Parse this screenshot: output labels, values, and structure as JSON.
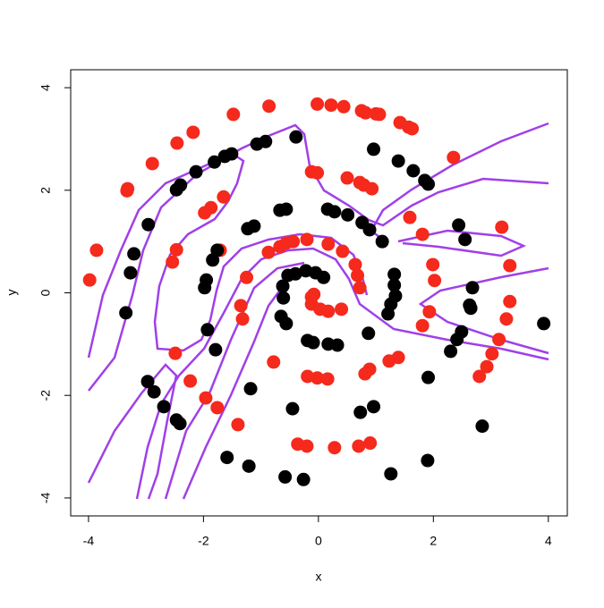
{
  "chart_data": {
    "type": "scatter",
    "xlabel": "x",
    "ylabel": "y",
    "xlim": [
      -4.31,
      4.33
    ],
    "ylim": [
      -4.35,
      4.35
    ],
    "xticks": [
      -4,
      -2,
      0,
      2,
      4
    ],
    "yticks": [
      -4,
      -2,
      0,
      2,
      4
    ],
    "series": [
      {
        "color": "#f5291c",
        "x": [
          -3.98,
          -3.86,
          -3.33,
          -3.32,
          -2.89,
          -2.46,
          -2.18,
          -1.48,
          -0.86,
          -0.02,
          0.22,
          0.44,
          0.75,
          0.82,
          1.0,
          1.06,
          1.42,
          1.57,
          1.63,
          2.35,
          -0.12,
          -0.02,
          0.5,
          0.72,
          0.79,
          0.93,
          -1.65,
          -1.87,
          -1.98,
          -2.47,
          -2.54,
          -1.71,
          -1.25,
          -1.35,
          -1.32,
          -0.87,
          -0.67,
          -0.56,
          -0.44,
          -0.2,
          0.17,
          0.42,
          0.64,
          0.68,
          0.72,
          -0.08,
          -0.12,
          -0.12,
          0.03,
          0.17,
          0.4,
          1.59,
          1.81,
          1.99,
          2.02,
          1.93,
          1.81,
          3.19,
          3.33,
          3.33,
          3.27,
          3.14,
          3.02,
          2.93,
          2.8,
          0.89,
          0.81,
          1.23,
          1.39,
          -0.78,
          -2.49,
          -2.23,
          -1.96,
          -1.76,
          -1.4,
          -0.19,
          -0.02,
          0.16,
          -0.36,
          -0.2,
          0.28,
          0.7,
          0.9
        ],
        "y": [
          0.25,
          0.83,
          1.99,
          2.03,
          2.52,
          2.92,
          3.13,
          3.48,
          3.64,
          3.68,
          3.66,
          3.63,
          3.55,
          3.51,
          3.49,
          3.48,
          3.32,
          3.23,
          3.2,
          2.64,
          2.36,
          2.34,
          2.24,
          2.15,
          2.1,
          2.03,
          1.87,
          1.66,
          1.56,
          0.84,
          0.6,
          0.83,
          0.3,
          -0.25,
          -0.51,
          0.79,
          0.9,
          0.97,
          1.0,
          1.04,
          0.95,
          0.81,
          0.55,
          0.34,
          0.1,
          -0.03,
          -0.08,
          -0.22,
          -0.32,
          -0.36,
          -0.32,
          1.47,
          1.14,
          0.55,
          0.24,
          -0.37,
          -0.64,
          1.28,
          0.53,
          -0.17,
          -0.51,
          -0.91,
          -1.19,
          -1.44,
          -1.63,
          -1.49,
          -1.58,
          -1.33,
          -1.26,
          -1.35,
          -1.18,
          -1.72,
          -2.05,
          -2.24,
          -2.57,
          -1.63,
          -1.66,
          -1.68,
          -2.95,
          -2.99,
          -3.02,
          -2.99,
          -2.93
        ]
      },
      {
        "color": "#000000",
        "x": [
          -3.21,
          -3.27,
          -3.35,
          -2.96,
          -2.47,
          -2.4,
          -2.13,
          -1.81,
          -1.63,
          -1.51,
          -1.07,
          -0.92,
          -0.39,
          0.96,
          1.39,
          1.65,
          1.85,
          1.91,
          2.44,
          2.55,
          -1.12,
          -1.23,
          -0.67,
          -0.56,
          0.16,
          0.28,
          0.51,
          0.76,
          0.89,
          1.11,
          -1.76,
          -1.84,
          -1.95,
          -1.98,
          -1.93,
          -1.79,
          -0.53,
          -0.62,
          -0.4,
          -0.22,
          -0.05,
          0.09,
          -0.61,
          -0.65,
          -0.56,
          -0.19,
          -0.09,
          0.17,
          0.33,
          0.87,
          1.32,
          1.32,
          1.34,
          1.26,
          1.21,
          2.68,
          2.63,
          2.65,
          2.49,
          2.41,
          2.3,
          3.92,
          -2.97,
          -2.86,
          -2.69,
          -2.47,
          -2.41,
          -1.18,
          -0.45,
          0.73,
          0.96,
          1.91,
          -1.59,
          -1.21,
          -0.58,
          -0.26,
          1.26,
          1.9,
          2.85
        ],
        "y": [
          0.76,
          0.39,
          -0.39,
          1.33,
          2.01,
          2.1,
          2.36,
          2.55,
          2.66,
          2.71,
          2.9,
          2.95,
          3.04,
          2.8,
          2.57,
          2.38,
          2.19,
          2.12,
          1.32,
          1.04,
          1.3,
          1.25,
          1.61,
          1.63,
          1.63,
          1.58,
          1.52,
          1.37,
          1.23,
          1.0,
          0.83,
          0.64,
          0.25,
          0.1,
          -0.72,
          -1.11,
          0.34,
          0.13,
          0.37,
          0.43,
          0.39,
          0.3,
          -0.1,
          -0.46,
          -0.6,
          -0.93,
          -0.97,
          -1.0,
          -1.02,
          -0.79,
          0.36,
          0.15,
          -0.06,
          -0.22,
          -0.41,
          0.1,
          -0.24,
          -0.3,
          -0.76,
          -0.91,
          -1.14,
          -0.6,
          -1.73,
          -1.93,
          -2.22,
          -2.48,
          -2.55,
          -1.87,
          -2.26,
          -2.33,
          -2.22,
          -1.65,
          -3.21,
          -3.38,
          -3.59,
          -3.64,
          -3.53,
          -3.27,
          -2.6
        ]
      }
    ]
  }
}
